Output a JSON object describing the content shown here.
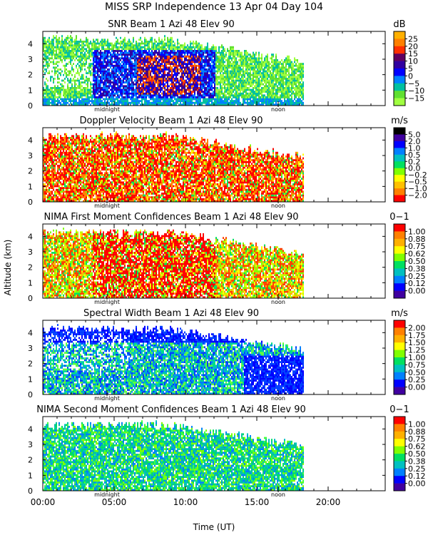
{
  "header": {
    "line1": "MISS SRP Independence  13 Apr 04 Day 104"
  },
  "shared": {
    "ylabel": "Altitude (km)",
    "xlabel": "Time (UT)",
    "xticks": [
      "00:00",
      "05:00",
      "10:00",
      "15:00",
      "20:00"
    ],
    "yticks": [
      "0",
      "1",
      "2",
      "3",
      "4"
    ],
    "marker_labels": [
      "midnight",
      "noon"
    ]
  },
  "chart_data": [
    {
      "type": "heatmap",
      "title": "SNR Beam 1 Azi  48 Elev 90",
      "unit": "dB",
      "x_range_hours": [
        0,
        24
      ],
      "ylim_km": [
        0,
        4.8
      ],
      "data_extent_hours": [
        0,
        18.2
      ],
      "colorbar_ticks": [
        "25",
        "20",
        "15",
        "10",
        "5",
        "0",
        "−5",
        "−10",
        "−15"
      ],
      "colorbar_colors": [
        "#ffb000",
        "#ff8000",
        "#ff3000",
        "#600060",
        "#3000a0",
        "#0000ff",
        "#0080ff",
        "#00c0a0",
        "#60e030",
        "#a0ff40"
      ],
      "palette": [
        "#a0ff40",
        "#60e030",
        "#00c0a0",
        "#0080ff",
        "#0000ff",
        "#3000a0",
        "#600060",
        "#ff3000",
        "#ff8000"
      ],
      "pattern": "snr"
    },
    {
      "type": "heatmap",
      "title": "Doppler Velocity Beam 1 Azi  48 Elev 90",
      "unit": "m/s",
      "x_range_hours": [
        0,
        24
      ],
      "ylim_km": [
        0,
        4.8
      ],
      "data_extent_hours": [
        0,
        18.2
      ],
      "colorbar_ticks": [
        "5.0",
        "2.0",
        "1.0",
        "0.5",
        "0.2",
        "0.0",
        "−0.2",
        "−0.5",
        "−1.0",
        "−2.0"
      ],
      "colorbar_colors": [
        "#000000",
        "#4000a0",
        "#0000ff",
        "#0080ff",
        "#00c0c0",
        "#00e060",
        "#80ff00",
        "#ffff00",
        "#ffc000",
        "#ff8000",
        "#ff0000"
      ],
      "palette": [
        "#ff0000",
        "#ff8000",
        "#ffc000",
        "#ffff00",
        "#80ff00",
        "#00e060",
        "#ff8000",
        "#ff0000"
      ],
      "pattern": "doppler"
    },
    {
      "type": "heatmap",
      "title": "NIMA First Moment Confidences Beam 1 Azi  48 Elev 90",
      "unit": "0−1",
      "x_range_hours": [
        0,
        24
      ],
      "ylim_km": [
        0,
        4.8
      ],
      "data_extent_hours": [
        0,
        18.2
      ],
      "colorbar_ticks": [
        "1.00",
        "0.88",
        "0.75",
        "0.62",
        "0.50",
        "0.38",
        "0.25",
        "0.12",
        "0.00"
      ],
      "colorbar_colors": [
        "#ff0000",
        "#ff8000",
        "#ffb000",
        "#ffff00",
        "#80ff00",
        "#00e060",
        "#00c0c0",
        "#0080ff",
        "#0000ff",
        "#4000a0"
      ],
      "palette": [
        "#ff0000",
        "#ff4000",
        "#ffb000",
        "#ffff00",
        "#c0ff00",
        "#80ff00",
        "#00e060"
      ],
      "pattern": "conf1"
    },
    {
      "type": "heatmap",
      "title": "Spectral Width Beam 1 Azi  48 Elev 90",
      "unit": "m/s",
      "x_range_hours": [
        0,
        24
      ],
      "ylim_km": [
        0,
        4.8
      ],
      "data_extent_hours": [
        0,
        18.2
      ],
      "colorbar_ticks": [
        "2.00",
        "1.75",
        "1.50",
        "1.25",
        "1.00",
        "0.75",
        "0.50",
        "0.25",
        "0.00"
      ],
      "colorbar_colors": [
        "#ff0000",
        "#ff8000",
        "#ffb000",
        "#ffff00",
        "#80ff00",
        "#00e060",
        "#00c0c0",
        "#0080ff",
        "#0000ff",
        "#4000a0"
      ],
      "palette": [
        "#0000ff",
        "#0040ff",
        "#0080ff",
        "#00c0c0",
        "#00e080",
        "#60ff40"
      ],
      "pattern": "width"
    },
    {
      "type": "heatmap",
      "title": "NIMA Second Moment Confidences Beam 1 Azi  48 Elev 90",
      "unit": "0−1",
      "x_range_hours": [
        0,
        24
      ],
      "ylim_km": [
        0,
        4.8
      ],
      "data_extent_hours": [
        0,
        18.2
      ],
      "colorbar_ticks": [
        "1.00",
        "0.88",
        "0.75",
        "0.62",
        "0.50",
        "0.38",
        "0.25",
        "0.12",
        "0.00"
      ],
      "colorbar_colors": [
        "#ff0000",
        "#ff8000",
        "#ffb000",
        "#ffff00",
        "#80ff00",
        "#00e060",
        "#00c0c0",
        "#0080ff",
        "#0000ff",
        "#4000a0"
      ],
      "palette": [
        "#00e060",
        "#00c0a0",
        "#00c0c0",
        "#0080ff",
        "#40ff40",
        "#80ff00"
      ],
      "pattern": "conf2"
    }
  ]
}
